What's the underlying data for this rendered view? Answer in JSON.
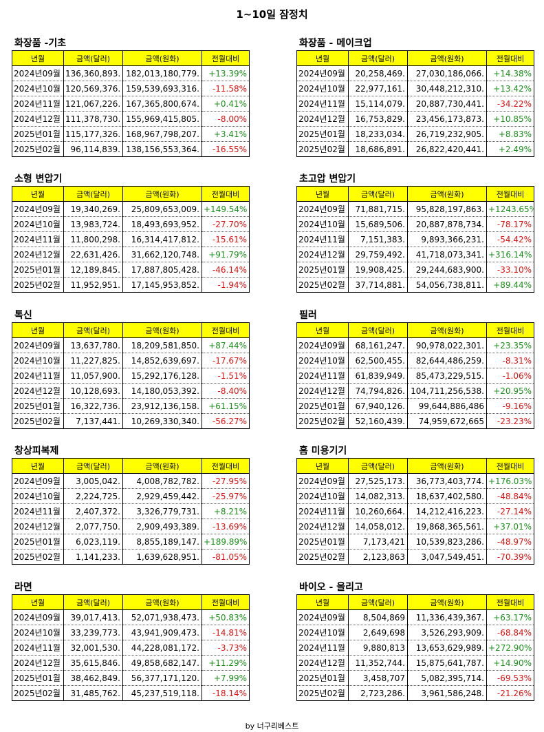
{
  "title": "1~10일 잠정치",
  "footer": "by 너구리베스트",
  "headers": [
    "년월",
    "금액(달러)",
    "금액(원화)",
    "전월대비"
  ],
  "colors": {
    "header_bg": "#ffff00",
    "positive": "#1a8f1a",
    "negative": "#e01010"
  },
  "tables": [
    {
      "name": "화장품 -기초",
      "rows": [
        [
          "2024년09월",
          "136,360,893.",
          "182,013,180,779.",
          "+13.39%"
        ],
        [
          "2024년10월",
          "120,569,376.",
          "159,539,693,316.",
          "-11.58%"
        ],
        [
          "2024년11월",
          "121,067,226.",
          "167,365,800,674.",
          "+0.41%"
        ],
        [
          "2024년12월",
          "111,378,730.",
          "155,969,415,805.",
          "-8.00%"
        ],
        [
          "2025년01월",
          "115,177,326.",
          "168,967,798,207.",
          "+3.41%"
        ],
        [
          "2025년02월",
          "96,114,839.",
          "138,156,553,364.",
          "-16.55%"
        ]
      ]
    },
    {
      "name": "화장품 - 메이크업",
      "rows": [
        [
          "2024년09월",
          "20,258,469.",
          "27,030,186,066.",
          "+14.38%"
        ],
        [
          "2024년10월",
          "22,977,161.",
          "30,448,212,310.",
          "+13.42%"
        ],
        [
          "2024년11월",
          "15,114,079.",
          "20,887,730,441.",
          "-34.22%"
        ],
        [
          "2024년12월",
          "16,753,829.",
          "23,456,173,873.",
          "+10.85%"
        ],
        [
          "2025년01월",
          "18,233,034.",
          "26,719,232,905.",
          "+8.83%"
        ],
        [
          "2025년02월",
          "18,686,891.",
          "26,822,420,441.",
          "+2.49%"
        ]
      ]
    },
    {
      "name": "소형 변압기",
      "rows": [
        [
          "2024년09월",
          "19,340,269.",
          "25,809,653,009.",
          "+149.54%"
        ],
        [
          "2024년10월",
          "13,983,724.",
          "18,493,693,952.",
          "-27.70%"
        ],
        [
          "2024년11월",
          "11,800,298.",
          "16,314,417,812.",
          "-15.61%"
        ],
        [
          "2024년12월",
          "22,631,426.",
          "31,662,120,748.",
          "+91.79%"
        ],
        [
          "2025년01월",
          "12,189,845.",
          "17,887,805,428.",
          "-46.14%"
        ],
        [
          "2025년02월",
          "11,952,951.",
          "17,145,953,852.",
          "-1.94%"
        ]
      ]
    },
    {
      "name": "초고압 변압기",
      "rows": [
        [
          "2024년09월",
          "71,881,715.",
          "95,828,197,863.",
          "+1243.65%"
        ],
        [
          "2024년10월",
          "15,689,506.",
          "20,887,878,734.",
          "-78.17%"
        ],
        [
          "2024년11월",
          "7,151,383.",
          "9,893,366,231.",
          "-54.42%"
        ],
        [
          "2024년12월",
          "29,759,492.",
          "41,718,073,341.",
          "+316.14%"
        ],
        [
          "2025년01월",
          "19,908,425.",
          "29,244,683,900.",
          "-33.10%"
        ],
        [
          "2025년02월",
          "37,714,881.",
          "54,056,738,811.",
          "+89.44%"
        ]
      ]
    },
    {
      "name": "톡신",
      "rows": [
        [
          "2024년09월",
          "13,637,780.",
          "18,209,581,850.",
          "+87.44%"
        ],
        [
          "2024년10월",
          "11,227,825.",
          "14,852,639,697.",
          "-17.67%"
        ],
        [
          "2024년11월",
          "11,057,900.",
          "15,292,176,128.",
          "-1.51%"
        ],
        [
          "2024년12월",
          "10,128,693.",
          "14,180,053,392.",
          "-8.40%"
        ],
        [
          "2025년01월",
          "16,322,736.",
          "23,912,136,158.",
          "+61.15%"
        ],
        [
          "2025년02월",
          "7,137,441.",
          "10,269,330,340.",
          "-56.27%"
        ]
      ]
    },
    {
      "name": "필러",
      "rows": [
        [
          "2024년09월",
          "68,161,247.",
          "90,978,022,301.",
          "+23.35%"
        ],
        [
          "2024년10월",
          "62,500,455.",
          "82,644,486,259.",
          "-8.31%"
        ],
        [
          "2024년11월",
          "61,839,949.",
          "85,473,229,515.",
          "-1.06%"
        ],
        [
          "2024년12월",
          "74,794,826.",
          "104,711,256,538.",
          "+20.95%"
        ],
        [
          "2025년01월",
          "67,940,126.",
          "99,644,886,486",
          "-9.16%"
        ],
        [
          "2025년02월",
          "52,160,439.",
          "74,959,672,665",
          "-23.23%"
        ]
      ]
    },
    {
      "name": "창상피복제",
      "rows": [
        [
          "2024년09월",
          "3,005,042.",
          "4,008,782,782.",
          "-27.95%"
        ],
        [
          "2024년10월",
          "2,224,725.",
          "2,929,459,442.",
          "-25.97%"
        ],
        [
          "2024년11월",
          "2,407,372.",
          "3,326,779,731.",
          "+8.21%"
        ],
        [
          "2024년12월",
          "2,077,750.",
          "2,909,493,389.",
          "-13.69%"
        ],
        [
          "2025년01월",
          "6,023,119.",
          "8,855,189,147.",
          "+189.89%"
        ],
        [
          "2025년02월",
          "1,141,233.",
          "1,639,628,951.",
          "-81.05%"
        ]
      ]
    },
    {
      "name": "홈 미용기기",
      "rows": [
        [
          "2024년09월",
          "27,525,173.",
          "36,773,403,774.",
          "+176.03%"
        ],
        [
          "2024년10월",
          "14,082,313.",
          "18,637,402,580.",
          "-48.84%"
        ],
        [
          "2024년11월",
          "10,260,664.",
          "14,212,416,223.",
          "-27.14%"
        ],
        [
          "2024년12월",
          "14,058,012.",
          "19,868,365,561.",
          "+37.01%"
        ],
        [
          "2025년01월",
          "7,173,421",
          "10,539,823,286.",
          "-48.97%"
        ],
        [
          "2025년02월",
          "2,123,863",
          "3,047,549,451.",
          "-70.39%"
        ]
      ]
    },
    {
      "name": "라면",
      "rows": [
        [
          "2024년09월",
          "39,017,413.",
          "52,071,938,473.",
          "+50.83%"
        ],
        [
          "2024년10월",
          "33,239,773.",
          "43,941,909,473.",
          "-14.81%"
        ],
        [
          "2024년11월",
          "32,001,530.",
          "44,228,081,172.",
          "-3.73%"
        ],
        [
          "2024년12월",
          "35,615,846.",
          "49,858,682,147.",
          "+11.29%"
        ],
        [
          "2025년01월",
          "38,462,849.",
          "56,377,171,120.",
          "+7.99%"
        ],
        [
          "2025년02월",
          "31,485,762.",
          "45,237,519,118.",
          "-18.14%"
        ]
      ]
    },
    {
      "name": "바이오 - 올리고",
      "rows": [
        [
          "2024년09월",
          "8,504,869",
          "11,336,439,367.",
          "+63.17%"
        ],
        [
          "2024년10월",
          "2,649,698",
          "3,526,293,909.",
          "-68.84%"
        ],
        [
          "2024년11월",
          "9,880,813",
          "13,653,629,989.",
          "+272.90%"
        ],
        [
          "2024년12월",
          "11,352,744.",
          "15,875,641,787.",
          "+14.90%"
        ],
        [
          "2025년01월",
          "3,458,707",
          "5,082,395,714.",
          "-69.53%"
        ],
        [
          "2025년02월",
          "2,723,286.",
          "3,961,586,248.",
          "-21.26%"
        ]
      ]
    }
  ]
}
